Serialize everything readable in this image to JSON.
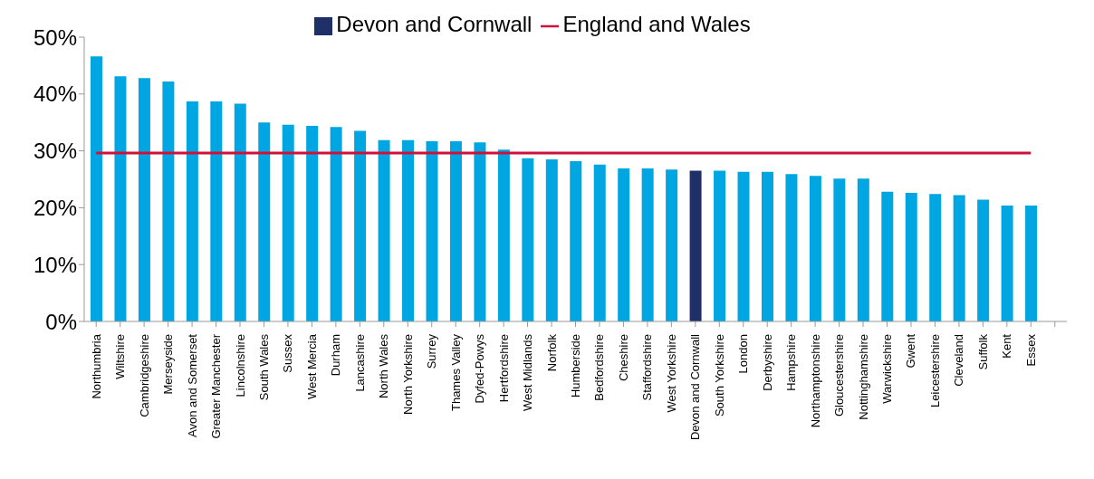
{
  "chart_data": {
    "type": "bar",
    "stacked": true,
    "categories": [
      "Northumbria",
      "Wiltshire",
      "Cambridgeshire",
      "Merseyside",
      "Avon and Somerset",
      "Greater Manchester",
      "Lincolnshire",
      "South Wales",
      "Sussex",
      "West Mercia",
      "Durham",
      "Lancashire",
      "North Wales",
      "North Yorkshire",
      "Surrey",
      "Thames Valley",
      "Dyfed-Powys",
      "Hertfordshire",
      "West Midlands",
      "Norfolk",
      "Humberside",
      "Bedfordshire",
      "Cheshire",
      "Staffordshire",
      "West Yorkshire",
      "Devon and Cornwall",
      "South Yorkshire",
      "London",
      "Derbyshire",
      "Hampshire",
      "Northamptonshire",
      "Gloucestershire",
      "Nottinghamshire",
      "Warwickshire",
      "Gwent",
      "Leicestershire",
      "Cleveland",
      "Suffolk",
      "Kent",
      "Essex",
      null
    ],
    "series": [
      {
        "color": "#00a6e2",
        "values": [
          46.6,
          43.1,
          42.8,
          42.2,
          38.7,
          38.7,
          38.3,
          35.0,
          34.6,
          34.4,
          34.2,
          33.5,
          31.9,
          31.9,
          31.7,
          31.7,
          31.5,
          30.2,
          28.7,
          28.5,
          28.2,
          27.6,
          26.9,
          26.9,
          26.7,
          null,
          26.5,
          26.3,
          26.3,
          25.9,
          25.6,
          25.1,
          25.1,
          22.8,
          22.6,
          22.4,
          22.2,
          21.4,
          20.4,
          20.4,
          null
        ]
      },
      {
        "name": "Devon and Cornwall",
        "color": "#1f3068",
        "values": [
          null,
          null,
          null,
          null,
          null,
          null,
          null,
          null,
          null,
          null,
          null,
          null,
          null,
          null,
          null,
          null,
          null,
          null,
          null,
          null,
          null,
          null,
          null,
          null,
          null,
          26.5,
          null,
          null,
          null,
          null,
          null,
          null,
          null,
          null,
          null,
          null,
          null,
          null,
          null,
          null,
          null
        ]
      },
      {
        "type": "line",
        "name": "England and Wales",
        "color": "#d0103a",
        "values": [
          29.6,
          29.6,
          29.6,
          29.6,
          29.6,
          29.6,
          29.6,
          29.6,
          29.6,
          29.6,
          29.6,
          29.6,
          29.6,
          29.6,
          29.6,
          29.6,
          29.6,
          29.6,
          29.6,
          29.6,
          29.6,
          29.6,
          29.6,
          29.6,
          29.6,
          29.6,
          29.6,
          29.6,
          29.6,
          29.6,
          29.6,
          29.6,
          29.6,
          29.6,
          29.6,
          29.6,
          29.6,
          29.6,
          29.6,
          29.6,
          null
        ]
      }
    ],
    "ylim": [
      0,
      50
    ],
    "yticks": [
      {
        "value": 0,
        "label": "0%"
      },
      {
        "value": 10,
        "label": "10%"
      },
      {
        "value": 20,
        "label": "20%"
      },
      {
        "value": 30,
        "label": "30%"
      },
      {
        "value": 40,
        "label": "40%"
      },
      {
        "value": 50,
        "label": "50%"
      }
    ],
    "grid": false,
    "legend": "top",
    "marker": "none",
    "line_style": "solid"
  }
}
